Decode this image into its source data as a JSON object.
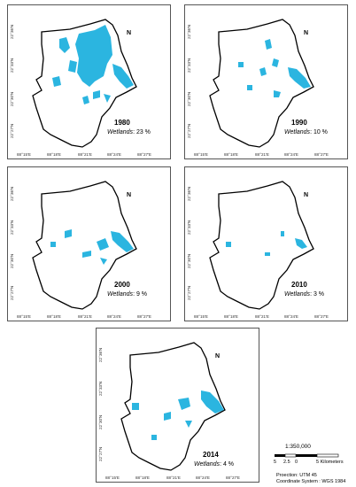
{
  "panels": [
    {
      "year": "1980",
      "wetlands_label": "Wetlands",
      "wetlands_value": "23 %",
      "x_ticks": [
        "88°15'E",
        "88°18'E",
        "88°21'E",
        "88°24'E",
        "88°27'E"
      ],
      "y_ticks": [
        "22°36'N",
        "22°33'N",
        "22°30'N",
        "22°27'N"
      ],
      "north": "N"
    },
    {
      "year": "1990",
      "wetlands_label": "Wetlands",
      "wetlands_value": "10 %",
      "x_ticks": [
        "88°15'E",
        "88°18'E",
        "88°21'E",
        "88°24'E",
        "88°27'E"
      ],
      "y_ticks": [
        "22°36'N",
        "22°33'N",
        "22°30'N",
        "22°27'N"
      ],
      "north": "N"
    },
    {
      "year": "2000",
      "wetlands_label": "Wetlands",
      "wetlands_value": "9 %",
      "x_ticks": [
        "88°15'E",
        "88°18'E",
        "88°21'E",
        "88°24'E",
        "88°27'E"
      ],
      "y_ticks": [
        "22°36'N",
        "22°33'N",
        "22°30'N",
        "22°27'N"
      ],
      "north": "N"
    },
    {
      "year": "2010",
      "wetlands_label": "Wetlands",
      "wetlands_value": "3 %",
      "x_ticks": [
        "88°15'E",
        "88°18'E",
        "88°21'E",
        "88°24'E",
        "88°27'E"
      ],
      "y_ticks": [
        "22°36'N",
        "22°33'N",
        "22°30'N",
        "22°27'N"
      ],
      "north": "N"
    },
    {
      "year": "2014",
      "wetlands_label": "Wetlands",
      "wetlands_value": "4 %",
      "x_ticks": [
        "88°15'E",
        "88°18'E",
        "88°21'E",
        "88°24'E",
        "88°27'E"
      ],
      "y_ticks": [
        "22°36'N",
        "22°33'N",
        "22°30'N",
        "22°27'N"
      ],
      "north": "N"
    }
  ],
  "scale": {
    "ratio": "1:350,000",
    "labels": [
      "5",
      "2.5",
      "0",
      "5 Kilometers"
    ]
  },
  "projection_line": "Proection: UTM 45",
  "coord_line": "Coordinate System : WGS 1984",
  "colors": {
    "wetland": "#2bb5e0",
    "outline": "#000000"
  }
}
